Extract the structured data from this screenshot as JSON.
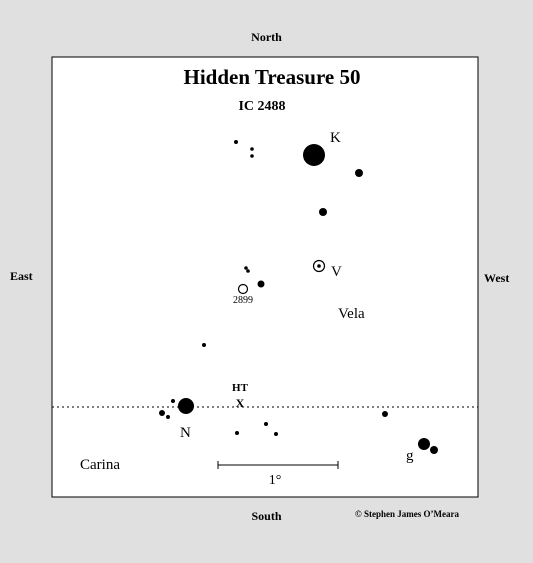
{
  "title": "Hidden Treasure 50",
  "object_id": "IC 2488",
  "directions": {
    "north": "North",
    "south": "South",
    "east": "East",
    "west": "West"
  },
  "credit": "© Stephen James O’Meara",
  "constellations": [
    "Vela",
    "Carina"
  ],
  "object_marker": {
    "label": "HT",
    "symbol": "X"
  },
  "star_labels": [
    "K",
    "V",
    "N",
    "g"
  ],
  "cluster_label": "2899",
  "scale_bar_label": "1°",
  "boundary_line_style": "dotted",
  "colors": {
    "page": "#e0e0e0",
    "chart": "#ffffff",
    "ink": "#000000"
  }
}
